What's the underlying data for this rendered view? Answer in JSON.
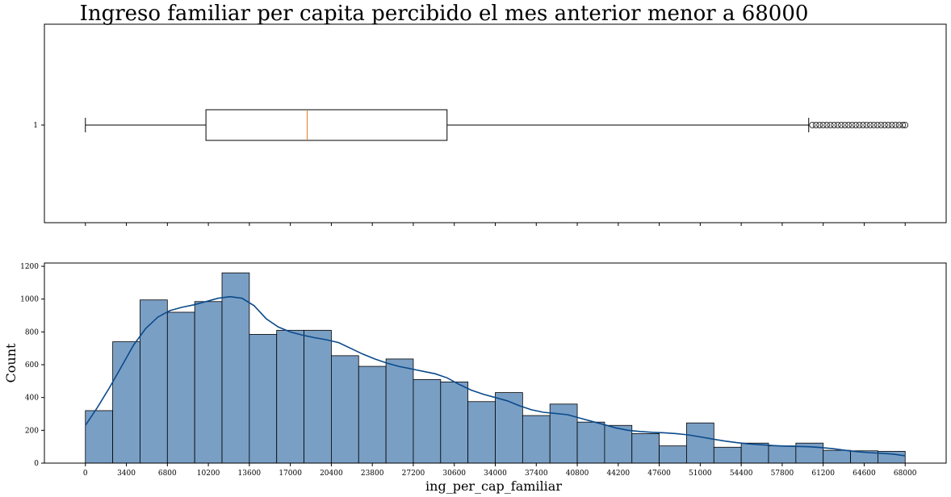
{
  "chart_data": [
    {
      "type": "boxplot",
      "title": "Ingreso familiar per capita percibido el mes anterior menor a 68000",
      "ytick_labels": [
        "1"
      ],
      "xlim": [
        -3400,
        71400
      ],
      "box": {
        "whisker_low": 0,
        "q1": 10000,
        "median": 18400,
        "q3": 30000,
        "whisker_high": 60000,
        "outliers": [
          60300,
          60600,
          60900,
          61200,
          61500,
          61800,
          62100,
          62400,
          62700,
          63000,
          63300,
          63600,
          63900,
          64200,
          64500,
          64800,
          65100,
          65400,
          65700,
          66000,
          66300,
          66600,
          66900,
          67200,
          67500,
          67800,
          68000
        ],
        "median_color": "#e07b1f"
      }
    },
    {
      "type": "histogram",
      "xlabel": "ing_per_cap_familiar",
      "ylabel": "Count",
      "xlim": [
        -3400,
        71400
      ],
      "ylim": [
        0,
        1220
      ],
      "bin_width": 2266.7,
      "bin_start": 0,
      "counts": [
        320,
        740,
        995,
        920,
        985,
        1160,
        785,
        810,
        810,
        655,
        590,
        635,
        510,
        495,
        375,
        430,
        290,
        360,
        250,
        230,
        180,
        105,
        245,
        97,
        122,
        105,
        122,
        78,
        75,
        72
      ],
      "bar_color": "#7a9fc5",
      "kde_color": "#0b4a8b",
      "kde": [
        [
          0,
          230
        ],
        [
          1000,
          340
        ],
        [
          2000,
          460
        ],
        [
          3000,
          590
        ],
        [
          4000,
          720
        ],
        [
          5000,
          820
        ],
        [
          6000,
          890
        ],
        [
          7000,
          930
        ],
        [
          8000,
          950
        ],
        [
          9000,
          965
        ],
        [
          10000,
          985
        ],
        [
          11000,
          1005
        ],
        [
          12000,
          1015
        ],
        [
          13000,
          1005
        ],
        [
          14000,
          960
        ],
        [
          15000,
          880
        ],
        [
          16000,
          830
        ],
        [
          17000,
          800
        ],
        [
          18000,
          780
        ],
        [
          19000,
          765
        ],
        [
          20000,
          752
        ],
        [
          21000,
          735
        ],
        [
          22000,
          700
        ],
        [
          23000,
          665
        ],
        [
          24000,
          635
        ],
        [
          25000,
          610
        ],
        [
          26000,
          590
        ],
        [
          27000,
          575
        ],
        [
          28000,
          560
        ],
        [
          29000,
          545
        ],
        [
          30000,
          520
        ],
        [
          31000,
          480
        ],
        [
          32000,
          445
        ],
        [
          33000,
          420
        ],
        [
          34000,
          400
        ],
        [
          35000,
          380
        ],
        [
          36000,
          350
        ],
        [
          37000,
          325
        ],
        [
          38000,
          310
        ],
        [
          39000,
          303
        ],
        [
          40000,
          295
        ],
        [
          41000,
          275
        ],
        [
          42000,
          255
        ],
        [
          43000,
          235
        ],
        [
          44000,
          215
        ],
        [
          45000,
          200
        ],
        [
          46000,
          193
        ],
        [
          47000,
          188
        ],
        [
          48000,
          185
        ],
        [
          49000,
          180
        ],
        [
          50000,
          172
        ],
        [
          51000,
          160
        ],
        [
          52000,
          147
        ],
        [
          53000,
          135
        ],
        [
          54000,
          125
        ],
        [
          55000,
          117
        ],
        [
          56000,
          112
        ],
        [
          57000,
          107
        ],
        [
          58000,
          104
        ],
        [
          59000,
          102
        ],
        [
          60000,
          100
        ],
        [
          61000,
          95
        ],
        [
          62000,
          88
        ],
        [
          63000,
          78
        ],
        [
          64000,
          70
        ],
        [
          65000,
          64
        ],
        [
          66000,
          60
        ],
        [
          67000,
          55
        ],
        [
          68000,
          45
        ]
      ],
      "xticks": [
        0,
        3400,
        6800,
        10200,
        13600,
        17000,
        20400,
        23800,
        27200,
        30600,
        34000,
        37400,
        40800,
        44200,
        47600,
        51000,
        54400,
        57800,
        61200,
        64600,
        68000
      ],
      "yticks": [
        0,
        200,
        400,
        600,
        800,
        1000,
        1200
      ]
    }
  ]
}
